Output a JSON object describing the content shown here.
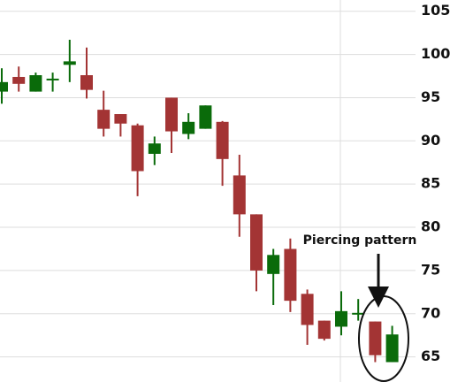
{
  "chart_data": {
    "type": "candlestick",
    "annotation": "Piercing pattern",
    "up_color": "#0a6b0a",
    "down_color": "#a33434",
    "ylim": [
      62.1,
      106.3
    ],
    "yticks": [
      65,
      70,
      75,
      80,
      85,
      90,
      95,
      100,
      105
    ],
    "grid": true,
    "open": [
      95.7,
      97.4,
      95.7,
      97.1,
      98.8,
      97.6,
      93.6,
      93.1,
      91.8,
      88.5,
      95.0,
      90.8,
      91.4,
      92.2,
      86.0,
      81.5,
      74.6,
      77.5,
      72.3,
      69.2,
      68.5,
      70.0,
      69.1,
      64.4
    ],
    "high": [
      98.4,
      98.6,
      97.9,
      97.9,
      101.7,
      100.8,
      95.8,
      93.1,
      92.0,
      90.5,
      95.0,
      93.2,
      94.1,
      92.3,
      88.4,
      81.5,
      77.5,
      78.7,
      72.8,
      69.2,
      72.6,
      71.7,
      69.1,
      68.6
    ],
    "low": [
      94.3,
      95.7,
      95.7,
      95.7,
      96.8,
      94.9,
      90.5,
      90.5,
      83.6,
      87.2,
      88.6,
      90.2,
      91.4,
      84.8,
      78.9,
      72.6,
      71.0,
      70.2,
      66.4,
      66.9,
      67.5,
      69.2,
      64.4,
      64.4
    ],
    "close": [
      96.8,
      96.6,
      97.6,
      97.2,
      99.2,
      95.9,
      91.4,
      92.0,
      86.5,
      89.7,
      91.1,
      92.2,
      94.1,
      87.9,
      81.5,
      75.0,
      76.8,
      71.5,
      68.7,
      67.1,
      70.3,
      70.1,
      65.2,
      67.6
    ]
  }
}
